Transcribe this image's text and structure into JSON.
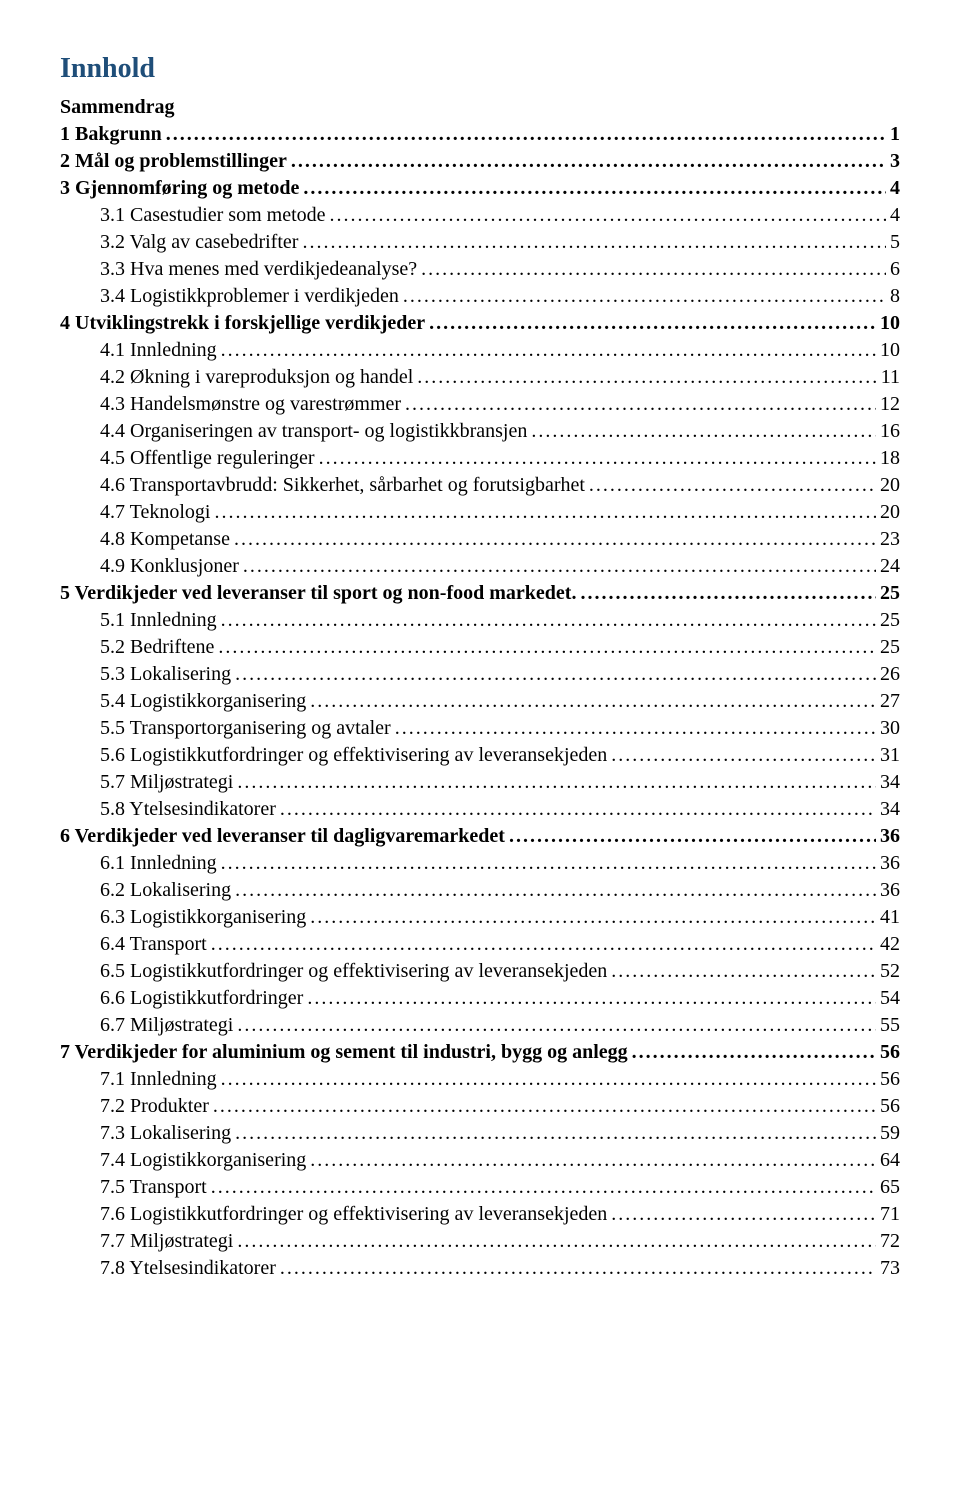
{
  "title": "Innhold",
  "colors": {
    "title": "#1f4e79",
    "text": "#000000",
    "bg": "#ffffff"
  },
  "entries": [
    {
      "label": "Sammendrag",
      "page": "",
      "bold": true,
      "indent": 1,
      "leader": false
    },
    {
      "label": "1   Bakgrunn",
      "page": "1",
      "bold": true,
      "indent": 1,
      "leader": true
    },
    {
      "label": "2   Mål og problemstillinger",
      "page": "3",
      "bold": true,
      "indent": 1,
      "leader": true
    },
    {
      "label": "3   Gjennomføring og metode",
      "page": "4",
      "bold": true,
      "indent": 1,
      "leader": true
    },
    {
      "label": "3.1   Casestudier som metode",
      "page": "4",
      "bold": false,
      "indent": 2,
      "leader": true
    },
    {
      "label": "3.2   Valg av casebedrifter",
      "page": "5",
      "bold": false,
      "indent": 2,
      "leader": true
    },
    {
      "label": "3.3   Hva menes med verdikjedeanalyse?",
      "page": "6",
      "bold": false,
      "indent": 2,
      "leader": true
    },
    {
      "label": "3.4   Logistikkproblemer i verdikjeden",
      "page": "8",
      "bold": false,
      "indent": 2,
      "leader": true
    },
    {
      "label": "4   Utviklingstrekk i forskjellige verdikjeder",
      "page": "10",
      "bold": true,
      "indent": 1,
      "leader": true
    },
    {
      "label": "4.1   Innledning",
      "page": "10",
      "bold": false,
      "indent": 2,
      "leader": true
    },
    {
      "label": "4.2   Økning i vareproduksjon og handel",
      "page": "11",
      "bold": false,
      "indent": 2,
      "leader": true
    },
    {
      "label": "4.3   Handelsmønstre og varestrømmer",
      "page": "12",
      "bold": false,
      "indent": 2,
      "leader": true
    },
    {
      "label": "4.4   Organiseringen av transport- og logistikkbransjen",
      "page": "16",
      "bold": false,
      "indent": 2,
      "leader": true
    },
    {
      "label": "4.5   Offentlige reguleringer",
      "page": "18",
      "bold": false,
      "indent": 2,
      "leader": true
    },
    {
      "label": "4.6   Transportavbrudd: Sikkerhet, sårbarhet og forutsigbarhet",
      "page": "20",
      "bold": false,
      "indent": 2,
      "leader": true
    },
    {
      "label": "4.7   Teknologi",
      "page": "20",
      "bold": false,
      "indent": 2,
      "leader": true
    },
    {
      "label": "4.8   Kompetanse",
      "page": "23",
      "bold": false,
      "indent": 2,
      "leader": true
    },
    {
      "label": "4.9   Konklusjoner",
      "page": "24",
      "bold": false,
      "indent": 2,
      "leader": true
    },
    {
      "label": "5   Verdikjeder ved leveranser til sport og non-food markedet.",
      "page": "25",
      "bold": true,
      "indent": 1,
      "leader": true
    },
    {
      "label": "5.1   Innledning",
      "page": "25",
      "bold": false,
      "indent": 2,
      "leader": true
    },
    {
      "label": "5.2   Bedriftene",
      "page": "25",
      "bold": false,
      "indent": 2,
      "leader": true
    },
    {
      "label": "5.3   Lokalisering",
      "page": "26",
      "bold": false,
      "indent": 2,
      "leader": true
    },
    {
      "label": "5.4   Logistikkorganisering",
      "page": "27",
      "bold": false,
      "indent": 2,
      "leader": true
    },
    {
      "label": "5.5   Transportorganisering og avtaler",
      "page": "30",
      "bold": false,
      "indent": 2,
      "leader": true
    },
    {
      "label": "5.6   Logistikkutfordringer og effektivisering av leveransekjeden",
      "page": "31",
      "bold": false,
      "indent": 2,
      "leader": true
    },
    {
      "label": "5.7   Miljøstrategi",
      "page": "34",
      "bold": false,
      "indent": 2,
      "leader": true
    },
    {
      "label": "5.8   Ytelsesindikatorer",
      "page": "34",
      "bold": false,
      "indent": 2,
      "leader": true
    },
    {
      "label": "6   Verdikjeder ved leveranser til dagligvaremarkedet",
      "page": "36",
      "bold": true,
      "indent": 1,
      "leader": true
    },
    {
      "label": "6.1   Innledning",
      "page": "36",
      "bold": false,
      "indent": 2,
      "leader": true
    },
    {
      "label": "6.2   Lokalisering",
      "page": "36",
      "bold": false,
      "indent": 2,
      "leader": true
    },
    {
      "label": "6.3   Logistikkorganisering",
      "page": "41",
      "bold": false,
      "indent": 2,
      "leader": true
    },
    {
      "label": "6.4   Transport",
      "page": "42",
      "bold": false,
      "indent": 2,
      "leader": true
    },
    {
      "label": "6.5   Logistikkutfordringer og effektivisering av leveransekjeden",
      "page": "52",
      "bold": false,
      "indent": 2,
      "leader": true
    },
    {
      "label": "6.6   Logistikkutfordringer",
      "page": "54",
      "bold": false,
      "indent": 2,
      "leader": true
    },
    {
      "label": "6.7   Miljøstrategi",
      "page": "55",
      "bold": false,
      "indent": 2,
      "leader": true
    },
    {
      "label": "7   Verdikjeder for aluminium og sement til industri, bygg og anlegg",
      "page": "56",
      "bold": true,
      "indent": 1,
      "leader": true
    },
    {
      "label": "7.1   Innledning",
      "page": "56",
      "bold": false,
      "indent": 2,
      "leader": true
    },
    {
      "label": "7.2   Produkter",
      "page": "56",
      "bold": false,
      "indent": 2,
      "leader": true
    },
    {
      "label": "7.3   Lokalisering",
      "page": "59",
      "bold": false,
      "indent": 2,
      "leader": true
    },
    {
      "label": "7.4   Logistikkorganisering",
      "page": "64",
      "bold": false,
      "indent": 2,
      "leader": true
    },
    {
      "label": "7.5   Transport",
      "page": "65",
      "bold": false,
      "indent": 2,
      "leader": true
    },
    {
      "label": "7.6   Logistikkutfordringer og effektivisering av leveransekjeden",
      "page": "71",
      "bold": false,
      "indent": 2,
      "leader": true
    },
    {
      "label": "7.7   Miljøstrategi",
      "page": "72",
      "bold": false,
      "indent": 2,
      "leader": true
    },
    {
      "label": "7.8   Ytelsesindikatorer",
      "page": "73",
      "bold": false,
      "indent": 2,
      "leader": true
    }
  ]
}
